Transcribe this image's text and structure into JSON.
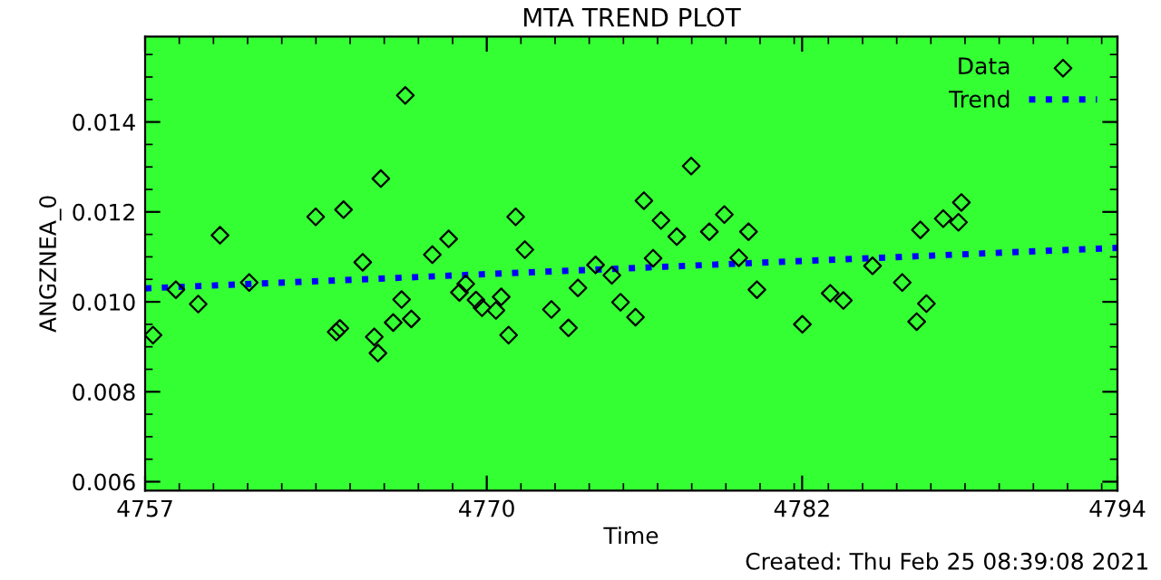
{
  "chart_data": {
    "type": "scatter",
    "title": "MTA TREND PLOT",
    "xlabel": "Time",
    "ylabel": "ANGZNEA_0",
    "xlim": [
      4757,
      4794
    ],
    "xticks": [
      4757,
      4770,
      4782,
      4794
    ],
    "ylim": [
      0.0058,
      0.0159
    ],
    "yticks": [
      0.006,
      0.008,
      {
        "value": 0.01,
        "label": "0.010"
      },
      0.012,
      0.014
    ],
    "grid": false,
    "legend": "top right",
    "annotations": [
      "Created: Thu Feb 25 08:39:08 2021"
    ],
    "series": [
      {
        "name": "Data",
        "color": "#000000",
        "marker": "diamond",
        "x": [
          4757.3,
          4758.17,
          4759.02,
          4759.85,
          4760.96,
          4763.49,
          4764.27,
          4764.41,
          4764.55,
          4765.28,
          4765.72,
          4765.86,
          4765.97,
          4766.44,
          4766.76,
          4766.9,
          4767.13,
          4767.93,
          4768.55,
          4768.96,
          4769.2,
          4769.59,
          4769.82,
          4770.35,
          4770.55,
          4770.83,
          4771.1,
          4771.45,
          4772.46,
          4773.11,
          4773.47,
          4774.14,
          4774.76,
          4775.09,
          4775.66,
          4775.98,
          4776.33,
          4776.63,
          4777.23,
          4777.78,
          4778.47,
          4779.04,
          4779.59,
          4779.96,
          4780.28,
          4782.01,
          4783.07,
          4783.57,
          4784.68,
          4785.81,
          4786.36,
          4786.5,
          4786.73,
          4787.37,
          4787.95,
          4788.06
        ],
        "values": [
          0.00926,
          0.01027,
          0.00995,
          0.01148,
          0.01043,
          0.01189,
          0.00933,
          0.00941,
          0.01205,
          0.01088,
          0.00922,
          0.00886,
          0.01274,
          0.00954,
          0.01005,
          0.01459,
          0.00962,
          0.01105,
          0.0114,
          0.01021,
          0.0104,
          0.01004,
          0.00987,
          0.00981,
          0.01011,
          0.00926,
          0.01189,
          0.01116,
          0.00983,
          0.00942,
          0.01031,
          0.01082,
          0.01059,
          0.00999,
          0.00966,
          0.01225,
          0.01097,
          0.01181,
          0.01145,
          0.01302,
          0.01156,
          0.01194,
          0.01098,
          0.01156,
          0.01027,
          0.0095,
          0.01019,
          0.01003,
          0.0108,
          0.01043,
          0.00956,
          0.0116,
          0.00996,
          0.01185,
          0.01177,
          0.01221
        ]
      },
      {
        "name": "Trend",
        "type": "line",
        "color": "#0000ff",
        "line_style": "dotted",
        "x": [
          4757,
          4794
        ],
        "values": [
          0.0103,
          0.0112
        ]
      }
    ]
  }
}
